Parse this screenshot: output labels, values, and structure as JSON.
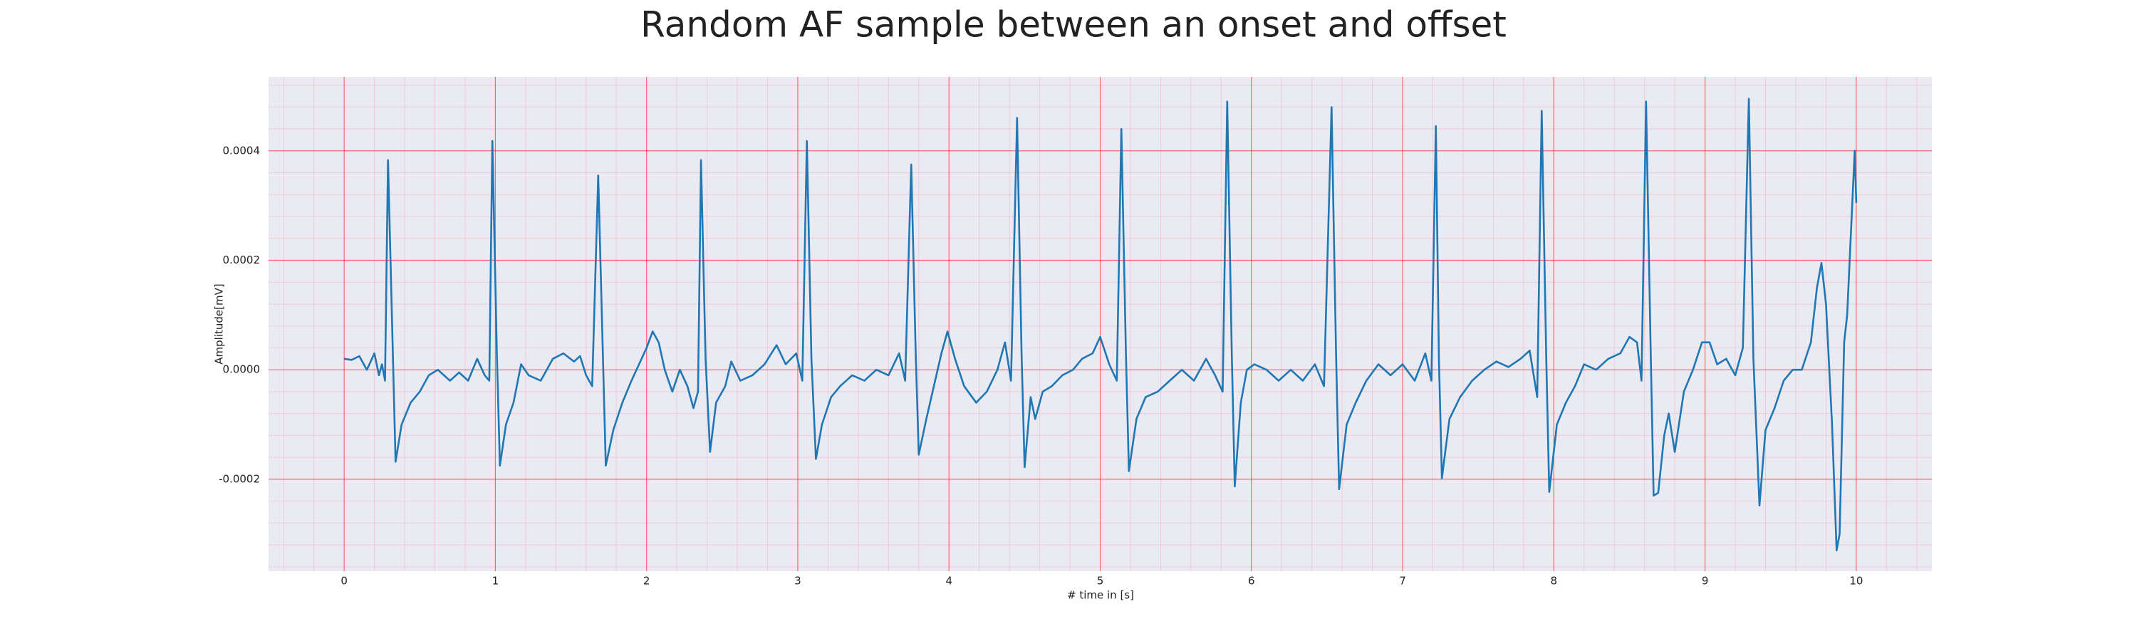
{
  "chart_data": {
    "type": "line",
    "title": "Random AF sample between an onset and offset",
    "xlabel": "# time in [s]",
    "ylabel": "Amplitude[mV]",
    "color": "#1f77b4",
    "grid": true,
    "grid_color": "#ff0000",
    "background": "#eaeaf2",
    "xlim": [
      -0.5,
      10.5
    ],
    "ylim": [
      -0.000368,
      0.000535
    ],
    "xticks": [
      0,
      1,
      2,
      3,
      4,
      5,
      6,
      7,
      8,
      9,
      10
    ],
    "yticks": [
      -0.0002,
      {
        "value": 0,
        "label": "0.0000"
      },
      0.0002,
      0.0004
    ],
    "xminorticks": [
      -0.4,
      -0.2,
      0.2,
      0.4,
      0.6,
      0.8,
      1.2,
      1.4,
      1.6,
      1.8,
      2.2,
      2.4,
      2.6,
      2.8,
      3.2,
      3.4,
      3.6,
      3.8,
      4.2,
      4.4,
      4.6,
      4.8,
      5.2,
      5.4,
      5.6,
      5.8,
      6.2,
      6.4,
      6.6,
      6.8,
      7.2,
      7.4,
      7.6,
      7.8,
      8.2,
      8.4,
      8.6,
      8.8,
      9.2,
      9.4,
      9.6,
      9.8,
      10.2,
      10.4
    ],
    "yminorticks": [
      -0.00036,
      -0.00032,
      -0.00028,
      -0.00024,
      -0.00016,
      -0.00012,
      -8e-05,
      -4e-05,
      4e-05,
      8e-05,
      0.00012,
      0.00016,
      0.00024,
      0.00028,
      0.00032,
      0.00036,
      0.00044,
      0.00048,
      0.00052
    ],
    "x": [
      0,
      0.05,
      0.1,
      0.15,
      0.2,
      0.23,
      0.25,
      0.27,
      0.29,
      0.32,
      0.34,
      0.38,
      0.44,
      0.5,
      0.56,
      0.62,
      0.7,
      0.76,
      0.82,
      0.88,
      0.93,
      0.96,
      0.98,
      1.01,
      1.03,
      1.07,
      1.12,
      1.17,
      1.22,
      1.3,
      1.38,
      1.45,
      1.52,
      1.56,
      1.6,
      1.64,
      1.68,
      1.71,
      1.73,
      1.78,
      1.84,
      1.9,
      1.95,
      2.0,
      2.04,
      2.08,
      2.12,
      2.17,
      2.22,
      2.27,
      2.31,
      2.34,
      2.36,
      2.39,
      2.42,
      2.46,
      2.52,
      2.56,
      2.62,
      2.7,
      2.78,
      2.86,
      2.92,
      2.99,
      3.03,
      3.06,
      3.09,
      3.12,
      3.16,
      3.22,
      3.28,
      3.36,
      3.44,
      3.52,
      3.6,
      3.67,
      3.71,
      3.75,
      3.78,
      3.8,
      3.85,
      3.9,
      3.95,
      3.99,
      4.04,
      4.1,
      4.18,
      4.25,
      4.32,
      4.37,
      4.41,
      4.45,
      4.48,
      4.5,
      4.54,
      4.57,
      4.62,
      4.68,
      4.75,
      4.82,
      4.88,
      4.95,
      5.0,
      5.06,
      5.11,
      5.14,
      5.17,
      5.19,
      5.24,
      5.3,
      5.38,
      5.46,
      5.54,
      5.62,
      5.7,
      5.76,
      5.81,
      5.84,
      5.87,
      5.89,
      5.93,
      5.97,
      6.02,
      6.1,
      6.18,
      6.26,
      6.34,
      6.42,
      6.48,
      6.53,
      6.56,
      6.58,
      6.63,
      6.69,
      6.76,
      6.84,
      6.92,
      7.0,
      7.08,
      7.15,
      7.19,
      7.22,
      7.24,
      7.26,
      7.31,
      7.38,
      7.46,
      7.54,
      7.62,
      7.7,
      7.78,
      7.84,
      7.89,
      7.92,
      7.95,
      7.97,
      8.02,
      8.08,
      8.14,
      8.2,
      8.28,
      8.36,
      8.44,
      8.5,
      8.55,
      8.58,
      8.61,
      8.64,
      8.66,
      8.69,
      8.73,
      8.76,
      8.8,
      8.86,
      8.92,
      8.98,
      9.03,
      9.08,
      9.14,
      9.2,
      9.25,
      9.29,
      9.32,
      9.36,
      9.4,
      9.46,
      9.52,
      9.58,
      9.64,
      9.7,
      9.74,
      9.77,
      9.8,
      9.84,
      9.87,
      9.89,
      9.92,
      9.94,
      9.99,
      10.0
    ],
    "values": [
      2e-05,
      1.8e-05,
      2.5e-05,
      0.0,
      3e-05,
      -1e-05,
      1e-05,
      -2e-05,
      0.000383,
      5e-05,
      -0.000168,
      -0.0001,
      -6e-05,
      -4e-05,
      -1e-05,
      0.0,
      -2e-05,
      -5e-06,
      -2e-05,
      2e-05,
      -1e-05,
      -2e-05,
      0.000418,
      3e-05,
      -0.000175,
      -0.0001,
      -6e-05,
      1e-05,
      -1e-05,
      -2e-05,
      2e-05,
      3e-05,
      1.5e-05,
      2.5e-05,
      -1e-05,
      -3e-05,
      0.000355,
      4e-05,
      -0.000175,
      -0.00011,
      -6e-05,
      -2e-05,
      1e-05,
      4e-05,
      7e-05,
      5e-05,
      0.0,
      -4e-05,
      0.0,
      -3e-05,
      -7e-05,
      -4e-05,
      0.000383,
      2e-05,
      -0.00015,
      -6e-05,
      -3e-05,
      1.5e-05,
      -2e-05,
      -1e-05,
      1e-05,
      4.5e-05,
      1e-05,
      3e-05,
      -2e-05,
      0.000418,
      2e-05,
      -0.000163,
      -0.0001,
      -5e-05,
      -3e-05,
      -1e-05,
      -2e-05,
      0.0,
      -1e-05,
      3e-05,
      -2e-05,
      0.000375,
      3e-05,
      -0.000155,
      -9e-05,
      -3e-05,
      3e-05,
      7e-05,
      2e-05,
      -3e-05,
      -6e-05,
      -4e-05,
      0.0,
      5e-05,
      -2e-05,
      0.00046,
      3e-05,
      -0.000178,
      -5e-05,
      -9e-05,
      -4e-05,
      -3e-05,
      -1e-05,
      0.0,
      2e-05,
      3e-05,
      6e-05,
      1e-05,
      -2e-05,
      0.00044,
      3e-05,
      -0.000185,
      -9e-05,
      -5e-05,
      -4e-05,
      -2e-05,
      0.0,
      -2e-05,
      2e-05,
      -1e-05,
      -4e-05,
      0.00049,
      3e-05,
      -0.000213,
      -6e-05,
      0.0,
      1e-05,
      0.0,
      -2e-05,
      0.0,
      -2e-05,
      1e-05,
      -3e-05,
      0.00048,
      3e-05,
      -0.000218,
      -0.0001,
      -6e-05,
      -2e-05,
      1e-05,
      -1e-05,
      1e-05,
      -2e-05,
      3e-05,
      -2e-05,
      0.000445,
      2e-05,
      -0.000198,
      -9e-05,
      -5e-05,
      -2e-05,
      0.0,
      1.5e-05,
      5e-06,
      2e-05,
      3.5e-05,
      -5e-05,
      0.000473,
      2e-05,
      -0.000223,
      -0.0001,
      -6e-05,
      -3e-05,
      1e-05,
      0.0,
      2e-05,
      3e-05,
      6e-05,
      5e-05,
      -2e-05,
      0.00049,
      4e-05,
      -0.00023,
      -0.000225,
      -0.00012,
      -8e-05,
      -0.00015,
      -4e-05,
      0.0,
      5e-05,
      5e-05,
      1e-05,
      2e-05,
      -1e-05,
      4e-05,
      0.000495,
      2e-05,
      -0.000248,
      -0.00011,
      -7e-05,
      -2e-05,
      0.0,
      0.0,
      5e-05,
      0.00015,
      0.000195,
      0.00012,
      -0.0001,
      -0.00033,
      -0.0003,
      5e-05,
      0.0001,
      0.0004,
      0.000305
    ]
  }
}
